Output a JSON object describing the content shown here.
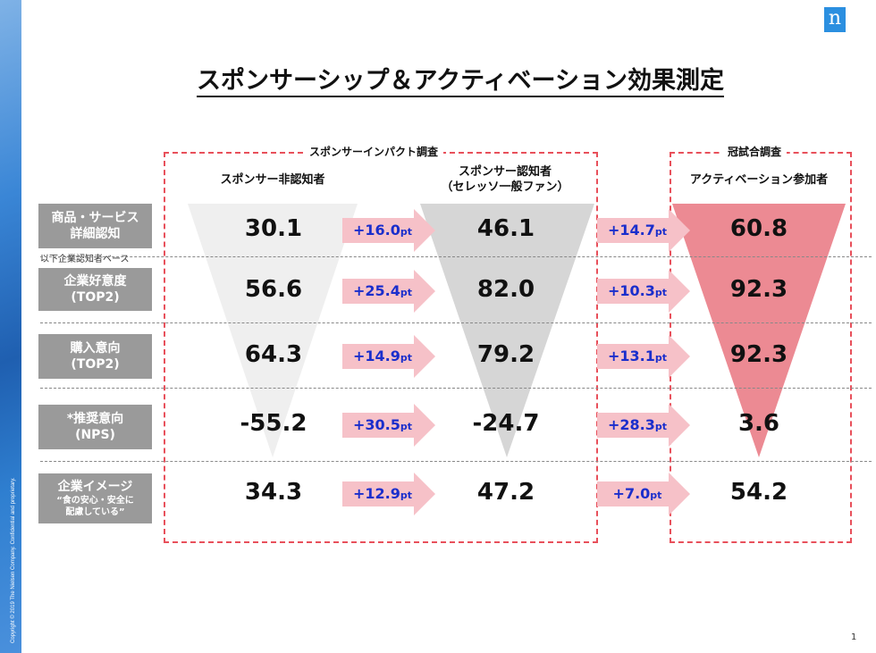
{
  "footer": {
    "copyright": "Copyright © 2019 The Nielsen Company. Confidential and proprietary.",
    "page": "1"
  },
  "logo": "n",
  "title": "スポンサーシップ＆アクティベーション効果測定",
  "groups": {
    "impact": "スポンサーインパクト調査",
    "crown": "冠試合調査"
  },
  "columns": [
    "スポンサー非認知者",
    "スポンサー認知者\n（セレッソ一般ファン）",
    "アクティベーション参加者"
  ],
  "base_note": "以下企業認知者ベース",
  "rows": [
    {
      "label": "商品・サービス\n詳細認知",
      "v1": "30.1",
      "d1": "+16.0",
      "v2": "46.1",
      "d2": "+14.7",
      "v3": "60.8"
    },
    {
      "label": "企業好意度\n(TOP2)",
      "v1": "56.6",
      "d1": "+25.4",
      "v2": "82.0",
      "d2": "+10.3",
      "v3": "92.3"
    },
    {
      "label": "購入意向\n(TOP2)",
      "v1": "64.3",
      "d1": "+14.9",
      "v2": "79.2",
      "d2": "+13.1",
      "v3": "92.3"
    },
    {
      "label": "*推奨意向\n(NPS)",
      "v1": "-55.2",
      "d1": "+30.5",
      "v2": "-24.7",
      "d2": "+28.3",
      "v3": "3.6"
    },
    {
      "label": "企業イメージ",
      "sublabel": "“食の安心・安全に\n配慮している”",
      "v1": "34.3",
      "d1": "+12.9",
      "v2": "47.2",
      "d2": "+7.0",
      "v3": "54.2"
    }
  ],
  "unit": "pt",
  "colors": {
    "arrow": "#f6c1c8",
    "delta_text": "#1a2ecc",
    "dashed_box": "#e8505b",
    "tri1": "#efefef",
    "tri2": "#d6d6d6",
    "tri3": "#ec8a93",
    "label_bg": "#9a9a9a"
  }
}
